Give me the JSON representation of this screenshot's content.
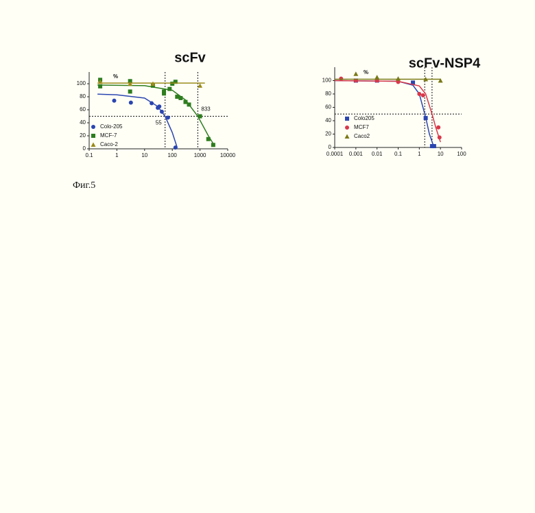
{
  "caption": "Фиг.5",
  "chart_data": [
    {
      "type": "scatter",
      "title": "scFv",
      "y_label": "%",
      "log_x": true,
      "xlim": [
        0.1,
        10000
      ],
      "xticks": [
        0.1,
        1,
        10,
        100,
        1000,
        10000
      ],
      "ylim": [
        0,
        118
      ],
      "yticks": [
        0,
        20,
        40,
        60,
        80,
        100
      ],
      "hline": 50,
      "vlines": [
        55,
        833
      ],
      "annotations": [
        {
          "text": "55",
          "x": 55
        },
        {
          "text": "833",
          "x": 833
        }
      ],
      "series": [
        {
          "name": "Colo-205",
          "color": "#2a45b0",
          "marker": "circle",
          "x": [
            0.8,
            3.2,
            18,
            30,
            34,
            42,
            70,
            130
          ],
          "values": [
            74,
            71,
            70,
            63,
            65,
            57,
            48,
            2
          ],
          "fit_x": [
            0.2,
            1,
            10,
            30,
            55,
            100,
            150
          ],
          "fit_values": [
            84,
            83,
            78,
            65,
            50,
            25,
            2
          ]
        },
        {
          "name": "MCF-7",
          "color": "#2e7d1f",
          "marker": "square",
          "x": [
            0.25,
            0.25,
            3,
            3,
            20,
            50,
            50,
            80,
            100,
            130,
            150,
            200,
            300,
            400,
            1000,
            2000,
            3000
          ],
          "values": [
            106,
            96,
            104,
            88,
            97,
            88,
            85,
            92,
            100,
            103,
            80,
            78,
            72,
            68,
            50,
            15,
            6
          ],
          "fit_x": [
            0.2,
            10,
            100,
            300,
            833,
            2000,
            3000
          ],
          "fit_values": [
            98,
            97,
            90,
            75,
            50,
            20,
            8
          ]
        },
        {
          "name": "Caco-2",
          "color": "#9a8a1a",
          "marker": "triangle",
          "x": [
            0.25,
            3,
            20,
            1000
          ],
          "values": [
            103,
            100,
            100,
            97
          ],
          "fit_x": [
            0.2,
            1500
          ],
          "fit_values": [
            101,
            101
          ]
        }
      ]
    },
    {
      "type": "scatter",
      "title": "scFv-NSP4",
      "y_label": "%",
      "log_x": true,
      "xlim": [
        0.0001,
        100
      ],
      "xticks": [
        0.0001,
        0.001,
        0.01,
        0.1,
        1,
        10,
        100
      ],
      "ylim": [
        0,
        120
      ],
      "yticks": [
        0,
        20,
        40,
        60,
        80,
        100
      ],
      "hline": 50,
      "vlines": [
        1.8,
        4
      ],
      "annotations": [],
      "series": [
        {
          "name": "Colo205",
          "color": "#2a45b0",
          "marker": "square",
          "x": [
            0.001,
            0.01,
            0.5,
            2,
            4,
            5
          ],
          "values": [
            100,
            100,
            97,
            44,
            2,
            2
          ],
          "fit_x": [
            0.0001,
            0.1,
            0.5,
            1,
            2,
            3,
            5
          ],
          "fit_values": [
            100,
            99,
            93,
            80,
            45,
            20,
            0
          ]
        },
        {
          "name": "MCF7",
          "color": "#d8384a",
          "marker": "circle",
          "x": [
            0.0002,
            0.001,
            0.01,
            0.1,
            1,
            1.5,
            8,
            9
          ],
          "values": [
            103,
            100,
            100,
            98,
            80,
            78,
            30,
            15
          ],
          "fit_x": [
            0.0001,
            0.1,
            1,
            2,
            4,
            6,
            10
          ],
          "fit_values": [
            100,
            99,
            92,
            80,
            50,
            30,
            8
          ]
        },
        {
          "name": "Caco2",
          "color": "#7a7a18",
          "marker": "triangle",
          "x": [
            0.001,
            0.01,
            0.1,
            2,
            10
          ],
          "values": [
            110,
            105,
            103,
            102,
            100
          ],
          "fit_x": [
            0.0001,
            10
          ],
          "fit_values": [
            102,
            102
          ]
        }
      ]
    }
  ]
}
